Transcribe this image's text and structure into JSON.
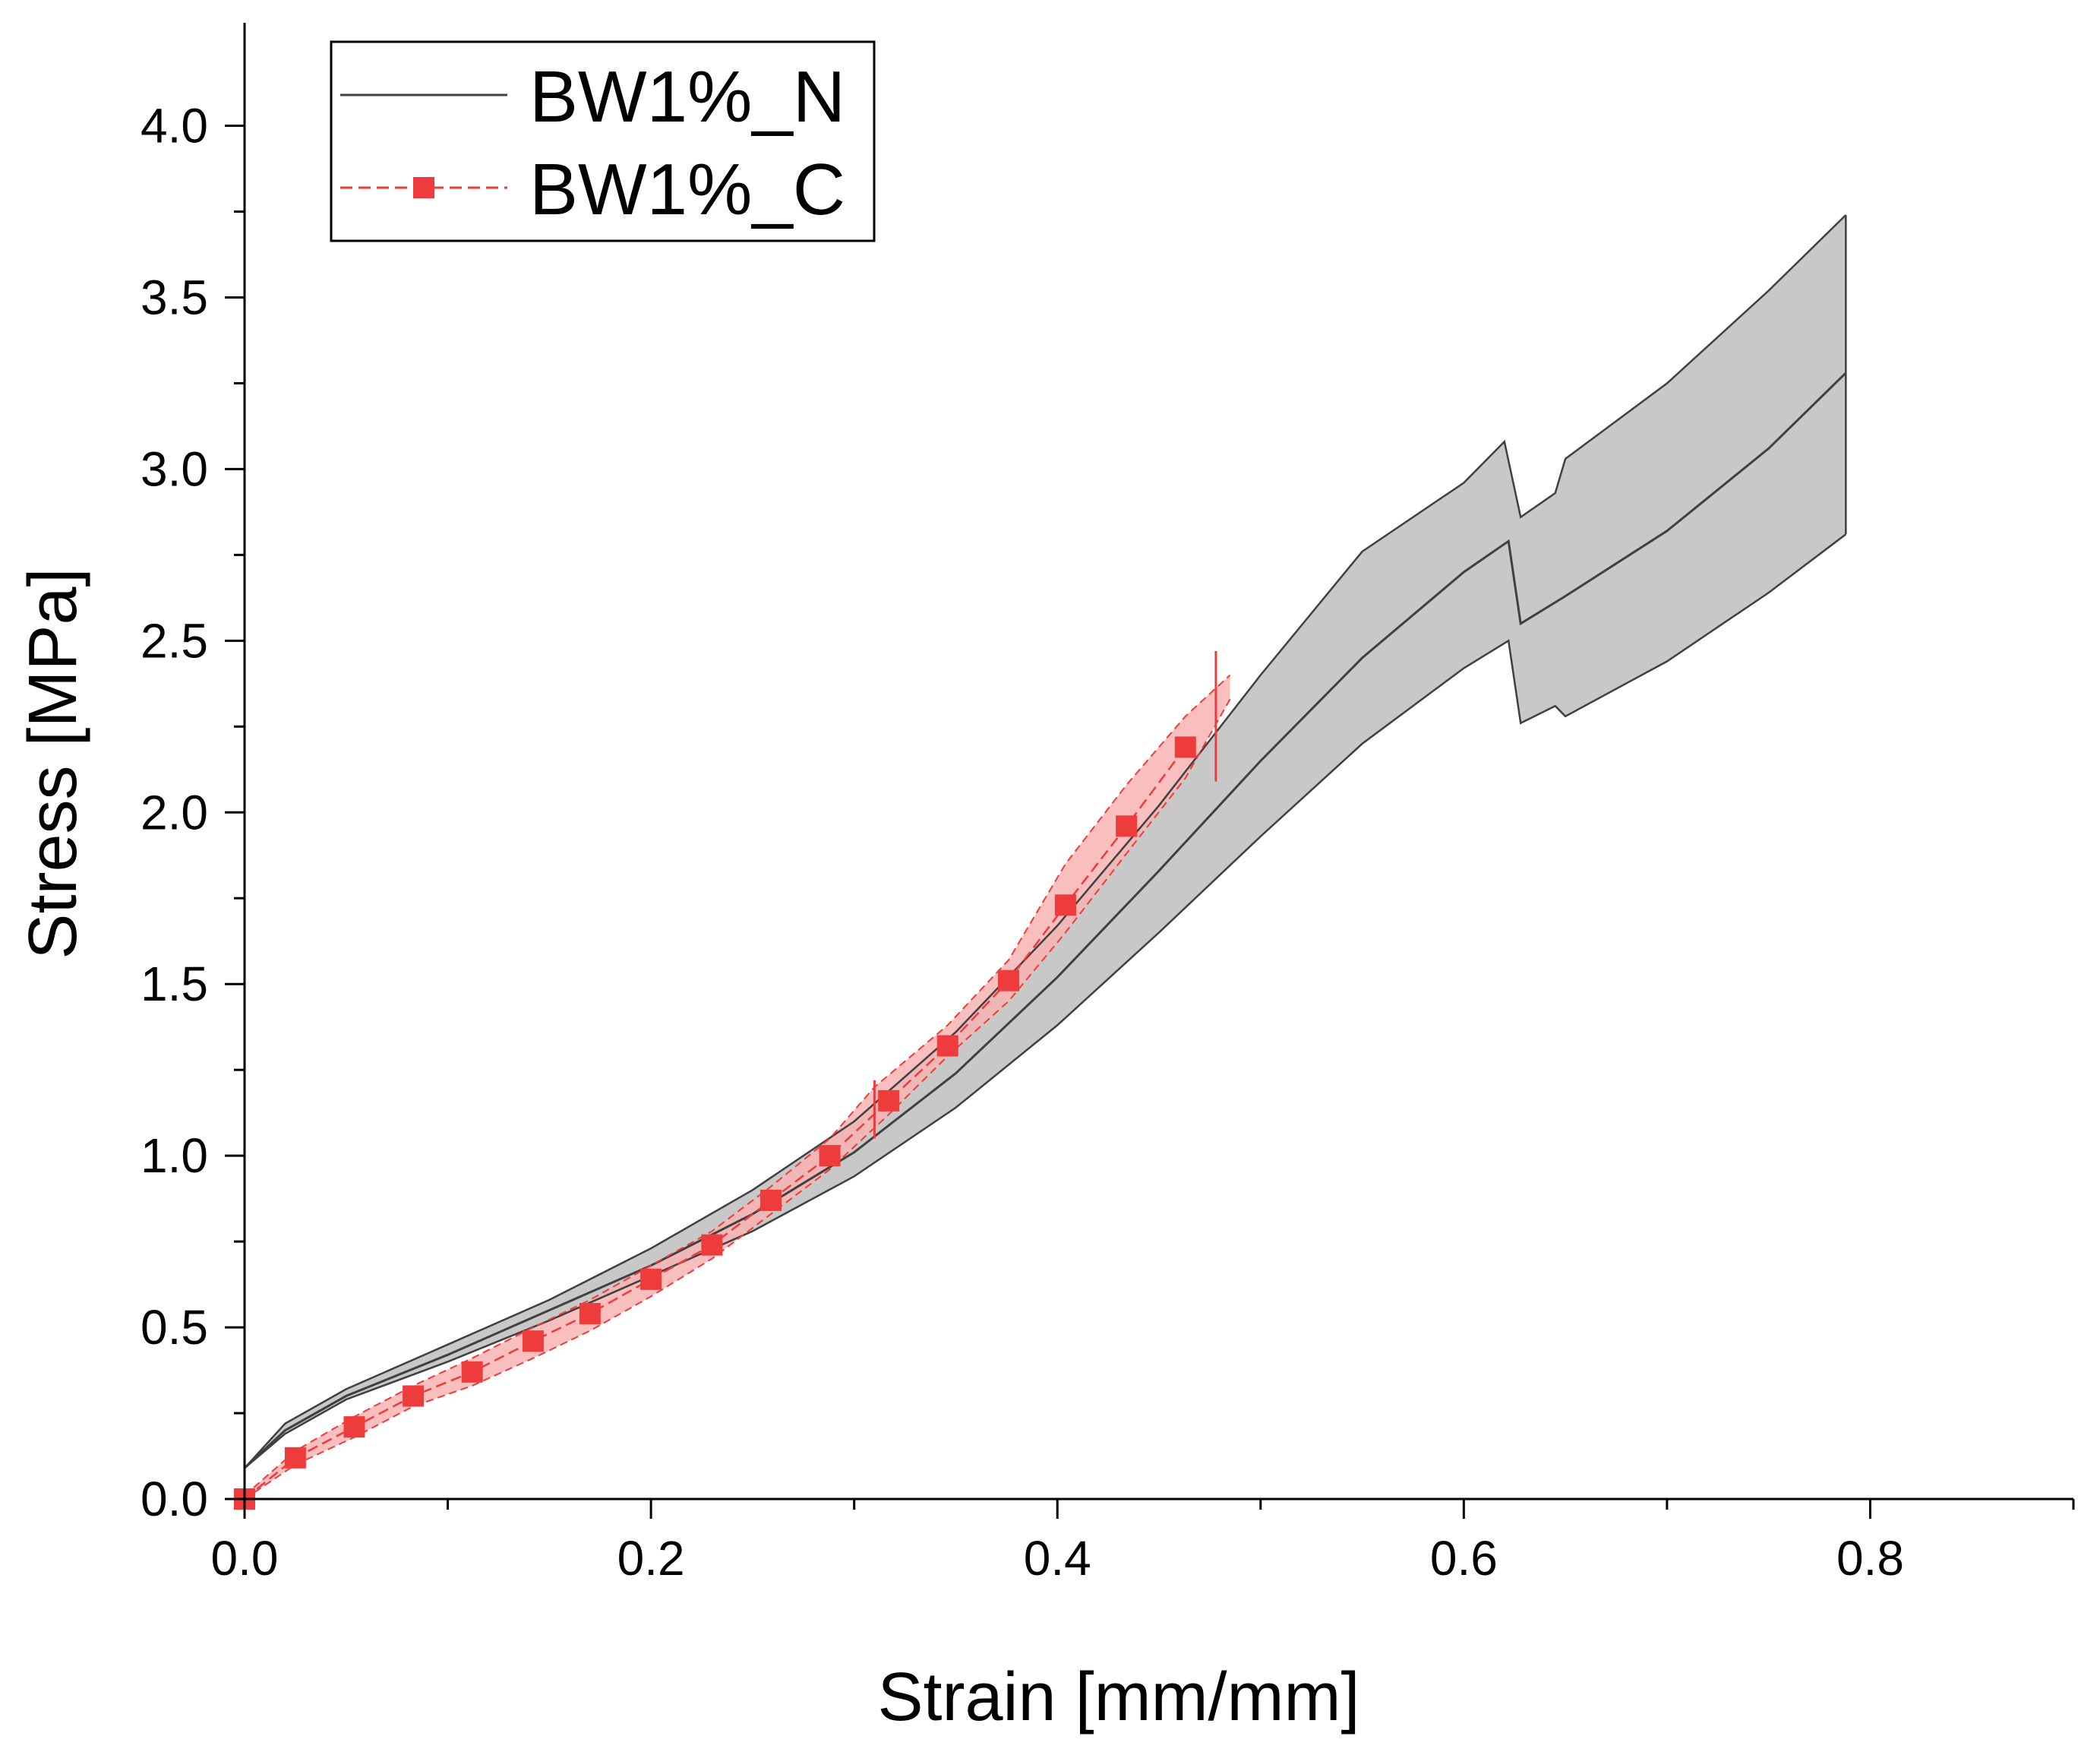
{
  "chart_data": {
    "type": "line",
    "title": "",
    "xlabel": "Strain [mm/mm]",
    "ylabel": "Stress [MPa]",
    "xlim": [
      0,
      0.9
    ],
    "ylim": [
      0,
      4.3
    ],
    "xticks": [
      0.0,
      0.2,
      0.4,
      0.6,
      0.8
    ],
    "xtick_labels": [
      "0.0",
      "0.2",
      "0.4",
      "0.6",
      "0.8"
    ],
    "xminor": [
      0.1,
      0.3,
      0.5,
      0.7,
      0.9
    ],
    "yticks": [
      0.0,
      0.5,
      1.0,
      1.5,
      2.0,
      2.5,
      3.0,
      3.5,
      4.0
    ],
    "ytick_labels": [
      "0.0",
      "0.5",
      "1.0",
      "1.5",
      "2.0",
      "2.5",
      "3.0",
      "3.5",
      "4.0"
    ],
    "yminor": [
      0.25,
      0.75,
      1.25,
      1.75,
      2.25,
      2.75,
      3.25,
      3.75
    ],
    "legend_position": "top-left",
    "series": [
      {
        "name": "BW1%_N",
        "color": "#404040",
        "band_color": "#c8c8c8",
        "mean": [
          [
            0,
            0.09
          ],
          [
            0.02,
            0.2
          ],
          [
            0.05,
            0.3
          ],
          [
            0.1,
            0.42
          ],
          [
            0.15,
            0.55
          ],
          [
            0.2,
            0.68
          ],
          [
            0.25,
            0.83
          ],
          [
            0.3,
            1.01
          ],
          [
            0.35,
            1.24
          ],
          [
            0.4,
            1.52
          ],
          [
            0.45,
            1.83
          ],
          [
            0.5,
            2.15
          ],
          [
            0.55,
            2.45
          ],
          [
            0.6,
            2.7
          ],
          [
            0.622,
            2.79
          ],
          [
            0.628,
            2.55
          ],
          [
            0.65,
            2.63
          ],
          [
            0.7,
            2.82
          ],
          [
            0.75,
            3.06
          ],
          [
            0.788,
            3.28
          ]
        ],
        "upper": [
          [
            0,
            0.09
          ],
          [
            0.02,
            0.22
          ],
          [
            0.05,
            0.32
          ],
          [
            0.1,
            0.45
          ],
          [
            0.15,
            0.58
          ],
          [
            0.2,
            0.73
          ],
          [
            0.25,
            0.9
          ],
          [
            0.3,
            1.1
          ],
          [
            0.35,
            1.36
          ],
          [
            0.4,
            1.67
          ],
          [
            0.45,
            2.02
          ],
          [
            0.5,
            2.4
          ],
          [
            0.55,
            2.76
          ],
          [
            0.6,
            2.96
          ],
          [
            0.62,
            3.08
          ],
          [
            0.628,
            2.86
          ],
          [
            0.645,
            2.93
          ],
          [
            0.65,
            3.03
          ],
          [
            0.7,
            3.25
          ],
          [
            0.75,
            3.52
          ],
          [
            0.788,
            3.74
          ]
        ],
        "lower": [
          [
            0,
            0.09
          ],
          [
            0.02,
            0.19
          ],
          [
            0.05,
            0.29
          ],
          [
            0.1,
            0.4
          ],
          [
            0.15,
            0.52
          ],
          [
            0.2,
            0.65
          ],
          [
            0.25,
            0.78
          ],
          [
            0.3,
            0.94
          ],
          [
            0.35,
            1.14
          ],
          [
            0.4,
            1.38
          ],
          [
            0.45,
            1.65
          ],
          [
            0.5,
            1.93
          ],
          [
            0.55,
            2.2
          ],
          [
            0.6,
            2.42
          ],
          [
            0.622,
            2.5
          ],
          [
            0.628,
            2.26
          ],
          [
            0.645,
            2.31
          ],
          [
            0.65,
            2.28
          ],
          [
            0.7,
            2.44
          ],
          [
            0.75,
            2.64
          ],
          [
            0.788,
            2.81
          ]
        ]
      },
      {
        "name": "BW1%_C",
        "color": "#ee3b3b",
        "band_color": "#f8b4b4",
        "x": [
          0.0,
          0.025,
          0.054,
          0.083,
          0.112,
          0.142,
          0.17,
          0.2,
          0.23,
          0.259,
          0.288,
          0.317,
          0.346,
          0.376,
          0.404,
          0.434,
          0.463
        ],
        "y": [
          0.0,
          0.12,
          0.21,
          0.3,
          0.37,
          0.46,
          0.54,
          0.64,
          0.74,
          0.87,
          1.0,
          1.16,
          1.32,
          1.51,
          1.73,
          1.96,
          2.19
        ],
        "upper": [
          [
            0,
            0.01
          ],
          [
            0.025,
            0.14
          ],
          [
            0.054,
            0.24
          ],
          [
            0.083,
            0.33
          ],
          [
            0.112,
            0.41
          ],
          [
            0.142,
            0.5
          ],
          [
            0.17,
            0.58
          ],
          [
            0.2,
            0.68
          ],
          [
            0.23,
            0.78
          ],
          [
            0.259,
            0.91
          ],
          [
            0.288,
            1.05
          ],
          [
            0.31,
            1.2
          ],
          [
            0.346,
            1.38
          ],
          [
            0.376,
            1.57
          ],
          [
            0.404,
            1.85
          ],
          [
            0.434,
            2.08
          ],
          [
            0.463,
            2.28
          ],
          [
            0.485,
            2.4
          ]
        ],
        "lower": [
          [
            0,
            0.0
          ],
          [
            0.025,
            0.1
          ],
          [
            0.054,
            0.18
          ],
          [
            0.083,
            0.27
          ],
          [
            0.112,
            0.33
          ],
          [
            0.142,
            0.41
          ],
          [
            0.17,
            0.49
          ],
          [
            0.2,
            0.59
          ],
          [
            0.23,
            0.7
          ],
          [
            0.259,
            0.83
          ],
          [
            0.288,
            0.96
          ],
          [
            0.317,
            1.12
          ],
          [
            0.346,
            1.29
          ],
          [
            0.376,
            1.45
          ],
          [
            0.404,
            1.65
          ],
          [
            0.434,
            1.88
          ],
          [
            0.463,
            2.1
          ],
          [
            0.485,
            2.33
          ]
        ],
        "error_bars": [
          [
            0.31,
            1.05,
            1.22
          ],
          [
            0.478,
            2.09,
            2.47
          ]
        ]
      }
    ]
  }
}
